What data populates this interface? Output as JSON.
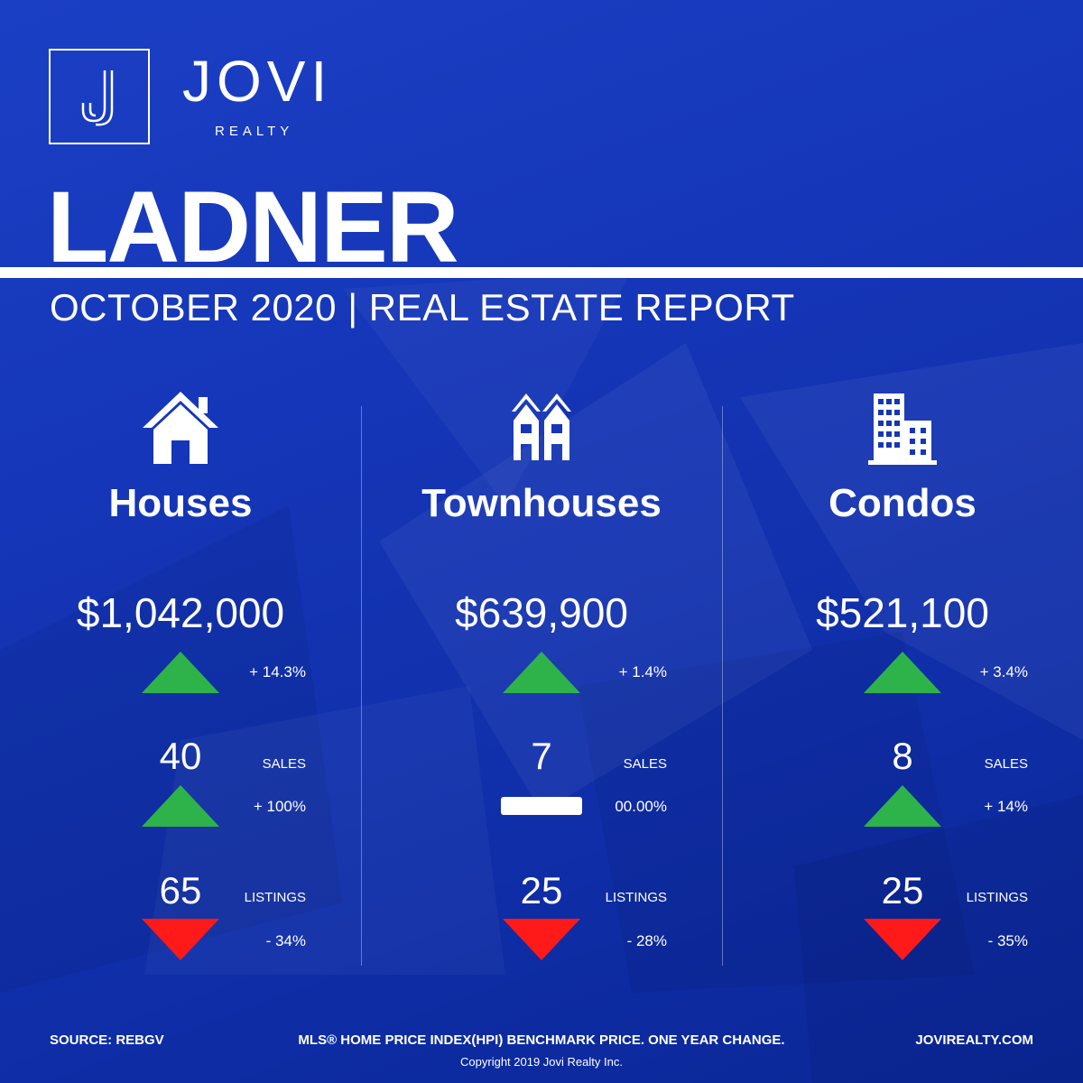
{
  "brand": {
    "name": "JOVI",
    "sub": "REALTY",
    "logo_letter": "J",
    "accent": "#ffffff"
  },
  "title": "LADNER",
  "subtitle": "OCTOBER 2020 | REAL ESTATE REPORT",
  "colors": {
    "background": "#1536b8",
    "up": "#2db34a",
    "down": "#ff1a1a",
    "flat": "#ffffff"
  },
  "columns": [
    {
      "icon": "house-icon",
      "title": "Houses",
      "price": "$1,042,000",
      "price_change": "+ 14.3%",
      "price_trend": "up",
      "sales": "40",
      "sales_label": "SALES",
      "sales_change": "+ 100%",
      "sales_trend": "up",
      "listings": "65",
      "listings_label": "LISTINGS",
      "listings_change": "- 34%",
      "listings_trend": "down"
    },
    {
      "icon": "townhouse-icon",
      "title": "Townhouses",
      "price": "$639,900",
      "price_change": "+ 1.4%",
      "price_trend": "up",
      "sales": "7",
      "sales_label": "SALES",
      "sales_change": "00.00%",
      "sales_trend": "flat",
      "listings": "25",
      "listings_label": "LISTINGS",
      "listings_change": "- 28%",
      "listings_trend": "down"
    },
    {
      "icon": "condo-building-icon",
      "title": "Condos",
      "price": "$521,100",
      "price_change": "+ 3.4%",
      "price_trend": "up",
      "sales": "8",
      "sales_label": "SALES",
      "sales_change": "+ 14%",
      "sales_trend": "up",
      "listings": "25",
      "listings_label": "LISTINGS",
      "listings_change": "- 35%",
      "listings_trend": "down"
    }
  ],
  "footer": {
    "source": "SOURCE:  REBGV",
    "note": "MLS® HOME PRICE INDEX(HPI) BENCHMARK PRICE. ONE YEAR CHANGE.",
    "website": "JOVIREALTY.COM",
    "copyright": "Copyright 2019 Jovi Realty Inc."
  }
}
